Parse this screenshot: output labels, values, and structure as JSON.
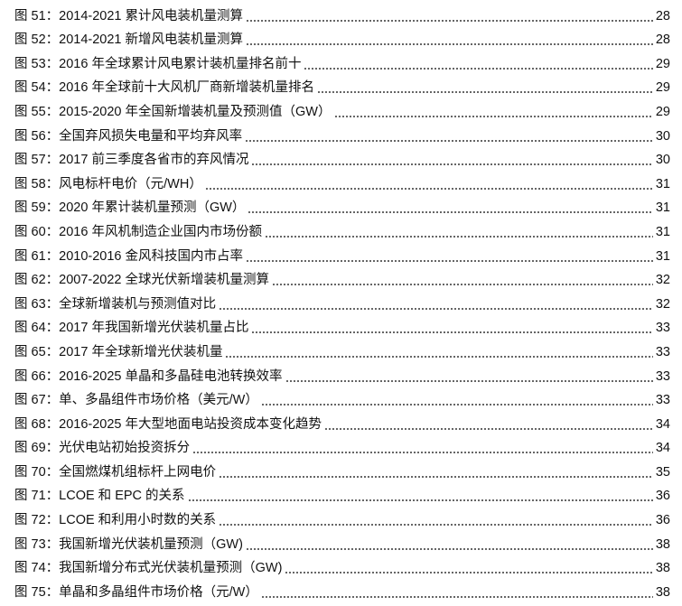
{
  "toc": [
    {
      "label": "图 51：2014-2021 累计风电装机量测算",
      "page": "28"
    },
    {
      "label": "图 52：2014-2021 新增风电装机量测算",
      "page": "28"
    },
    {
      "label": "图 53：2016 年全球累计风电累计装机量排名前十",
      "page": "29"
    },
    {
      "label": "图 54：2016 年全球前十大风机厂商新增装机量排名",
      "page": "29"
    },
    {
      "label": "图 55：2015-2020 年全国新增装机量及预测值（GW）",
      "page": "29"
    },
    {
      "label": "图 56：全国弃风损失电量和平均弃风率",
      "page": "30"
    },
    {
      "label": "图 57：2017 前三季度各省市的弃风情况",
      "page": "30"
    },
    {
      "label": "图 58：风电标杆电价（元/WH）",
      "page": "31"
    },
    {
      "label": "图 59：2020 年累计装机量预测（GW）",
      "page": "31"
    },
    {
      "label": "图 60：2016 年风机制造企业国内市场份额",
      "page": "31"
    },
    {
      "label": "图 61：2010-2016 金风科技国内市占率",
      "page": "31"
    },
    {
      "label": "图 62：2007-2022 全球光伏新增装机量测算",
      "page": "32"
    },
    {
      "label": "图 63：全球新增装机与预测值对比",
      "page": "32"
    },
    {
      "label": "图 64：2017 年我国新增光伏装机量占比",
      "page": "33"
    },
    {
      "label": "图 65：2017 年全球新增光伏装机量",
      "page": "33"
    },
    {
      "label": "图 66：2016-2025 单晶和多晶硅电池转换效率",
      "page": "33"
    },
    {
      "label": "图 67：单、多晶组件市场价格（美元/W）",
      "page": "33"
    },
    {
      "label": "图 68：2016-2025 年大型地面电站投资成本变化趋势",
      "page": "34"
    },
    {
      "label": "图 69：光伏电站初始投资拆分",
      "page": "34"
    },
    {
      "label": "图 70：全国燃煤机组标杆上网电价",
      "page": "35"
    },
    {
      "label": "图 71：LCOE 和 EPC 的关系",
      "page": "36"
    },
    {
      "label": "图 72：LCOE 和利用小时数的关系",
      "page": "36"
    },
    {
      "label": "图 73：我国新增光伏装机量预测（GW)",
      "page": "38"
    },
    {
      "label": "图 74：我国新增分布式光伏装机量预测（GW)",
      "page": "38"
    },
    {
      "label": "图 75：单晶和多晶组件市场价格（元/W）",
      "page": "38"
    }
  ]
}
